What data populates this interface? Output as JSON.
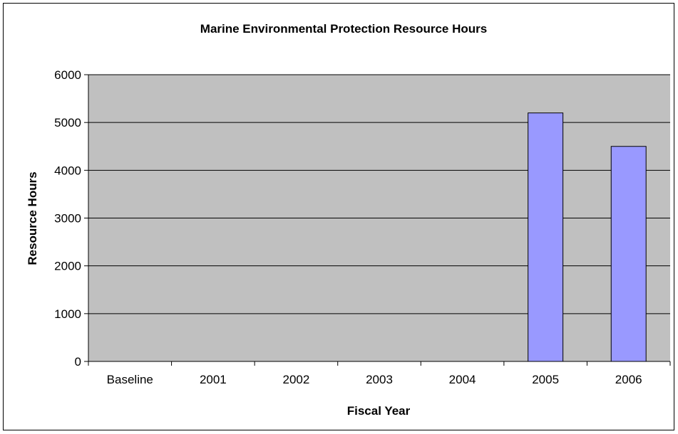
{
  "chart_data": {
    "type": "bar",
    "title": "Marine Environmental Protection Resource Hours",
    "xlabel": "Fiscal Year",
    "ylabel": "Resource Hours",
    "categories": [
      "Baseline",
      "2001",
      "2002",
      "2003",
      "2004",
      "2005",
      "2006"
    ],
    "values": [
      0,
      0,
      0,
      0,
      0,
      5200,
      4500
    ],
    "ylim": [
      0,
      6000
    ],
    "yticks": [
      "0",
      "1000",
      "2000",
      "3000",
      "4000",
      "5000",
      "6000"
    ],
    "grid": true,
    "legend": "none",
    "colors": {
      "plot_background": "#c0c0c0",
      "bar_fill": "#9999ff",
      "bar_stroke": "#000000",
      "gridline": "#000000"
    }
  }
}
